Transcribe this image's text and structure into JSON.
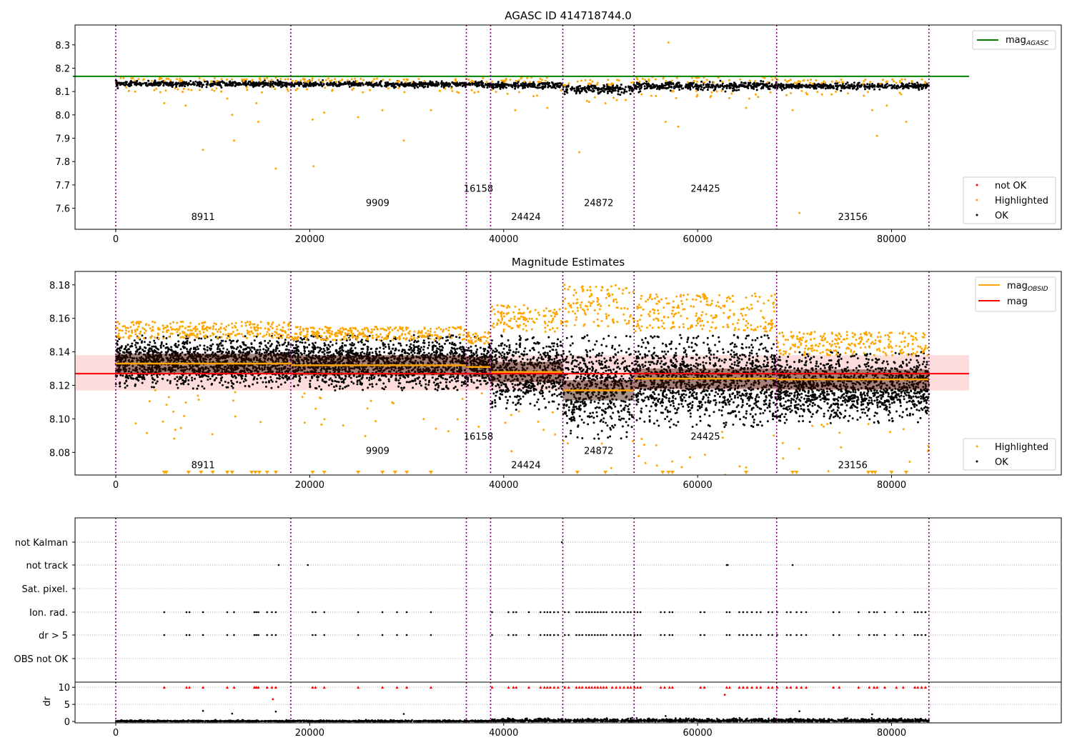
{
  "colors": {
    "ok": "#000000",
    "highlighted": "#ffa500",
    "not_ok": "#ff0000",
    "agasc_line": "#008000",
    "obsid_line": "#ffa500",
    "mag_line": "#ff0000",
    "mag_band": "#ffdcdc",
    "obs_boundary": "#800080",
    "grid": "#b0b0b0"
  },
  "chart_data": [
    {
      "id": "agasc",
      "type": "scatter",
      "title": "AGASC ID 414718744.0",
      "xlim": [
        -4200,
        97500
      ],
      "ylim": [
        7.51,
        8.385
      ],
      "xticks": [
        0,
        20000,
        40000,
        60000,
        80000
      ],
      "xticklabels": [
        "0",
        "20000",
        "40000",
        "60000",
        "80000"
      ],
      "yticks": [
        7.6,
        7.7,
        7.8,
        7.9,
        8.0,
        8.1,
        8.2,
        8.3
      ],
      "yticklabels": [
        "7.6",
        "7.7",
        "7.8",
        "7.9",
        "8.0",
        "8.1",
        "8.2",
        "8.3"
      ],
      "obs_boundaries": [
        0,
        18050,
        36150,
        38650,
        46100,
        53450,
        68150,
        83850
      ],
      "obsid_labels": [
        {
          "text": "8911",
          "x": 9000,
          "y": 7.55
        },
        {
          "text": "9909",
          "x": 27000,
          "y": 7.61
        },
        {
          "text": "16158",
          "x": 37400,
          "y": 7.67
        },
        {
          "text": "24424",
          "x": 42300,
          "y": 7.55
        },
        {
          "text": "24872",
          "x": 49800,
          "y": 7.61
        },
        {
          "text": "24425",
          "x": 60800,
          "y": 7.67
        },
        {
          "text": "23156",
          "x": 76000,
          "y": 7.55
        }
      ],
      "agasc_mag": {
        "value": 8.165,
        "x_range": [
          0,
          88000
        ],
        "label": "mag",
        "label_sub": "AGASC"
      },
      "segments": [
        {
          "x0": 0,
          "x1": 18050,
          "center": 8.133,
          "spread": 0.012
        },
        {
          "x0": 18050,
          "x1": 36150,
          "center": 8.131,
          "spread": 0.012
        },
        {
          "x0": 36150,
          "x1": 38650,
          "center": 8.131,
          "spread": 0.012
        },
        {
          "x0": 38650,
          "x1": 46100,
          "center": 8.126,
          "spread": 0.016
        },
        {
          "x0": 46100,
          "x1": 53450,
          "center": 8.11,
          "spread": 0.02
        },
        {
          "x0": 53450,
          "x1": 68150,
          "center": 8.124,
          "spread": 0.018
        },
        {
          "x0": 68150,
          "x1": 83850,
          "center": 8.122,
          "spread": 0.014
        }
      ],
      "outliers": [
        [
          2000,
          8.1
        ],
        [
          5000,
          8.05
        ],
        [
          7200,
          8.04
        ],
        [
          9000,
          7.85
        ],
        [
          11500,
          8.07
        ],
        [
          12000,
          8.0
        ],
        [
          12200,
          7.89
        ],
        [
          14500,
          8.05
        ],
        [
          14700,
          7.97
        ],
        [
          16500,
          7.77
        ],
        [
          20300,
          7.98
        ],
        [
          20400,
          7.78
        ],
        [
          21500,
          8.01
        ],
        [
          25000,
          7.99
        ],
        [
          27500,
          8.02
        ],
        [
          29700,
          7.89
        ],
        [
          32500,
          8.02
        ],
        [
          41200,
          8.02
        ],
        [
          44500,
          8.03
        ],
        [
          47800,
          7.84
        ],
        [
          50500,
          8.05
        ],
        [
          56700,
          7.97
        ],
        [
          57000,
          8.31
        ],
        [
          58000,
          7.95
        ],
        [
          65000,
          8.03
        ],
        [
          69800,
          8.02
        ],
        [
          70500,
          7.58
        ],
        [
          78000,
          8.02
        ],
        [
          78500,
          7.91
        ],
        [
          79500,
          8.04
        ],
        [
          81500,
          7.97
        ]
      ],
      "legend": {
        "upper": [
          {
            "label": "mag",
            "sub": "AGASC"
          }
        ],
        "lower": [
          {
            "label": "not OK"
          },
          {
            "label": "Highlighted"
          },
          {
            "label": "OK"
          }
        ]
      }
    },
    {
      "id": "estimates",
      "type": "scatter",
      "title": "Magnitude Estimates",
      "xlim": [
        -4200,
        97500
      ],
      "ylim": [
        8.0665,
        8.188
      ],
      "xticks": [
        0,
        20000,
        40000,
        60000,
        80000
      ],
      "xticklabels": [
        "0",
        "20000",
        "40000",
        "60000",
        "80000"
      ],
      "yticks": [
        8.08,
        8.1,
        8.12,
        8.14,
        8.16,
        8.18
      ],
      "yticklabels": [
        "8.08",
        "8.10",
        "8.12",
        "8.14",
        "8.16",
        "8.18"
      ],
      "obs_boundaries": [
        0,
        18050,
        36150,
        38650,
        46100,
        53450,
        68150,
        83850
      ],
      "obsid_labels": [
        {
          "text": "8911",
          "x": 9000,
          "y": 8.0705
        },
        {
          "text": "9909",
          "x": 27000,
          "y": 8.079
        },
        {
          "text": "16158",
          "x": 37400,
          "y": 8.0875
        },
        {
          "text": "24424",
          "x": 42300,
          "y": 8.0705
        },
        {
          "text": "24872",
          "x": 49800,
          "y": 8.079
        },
        {
          "text": "24425",
          "x": 60800,
          "y": 8.0875
        },
        {
          "text": "23156",
          "x": 76000,
          "y": 8.0705
        }
      ],
      "mag": {
        "value": 8.127,
        "band": [
          8.117,
          8.138
        ],
        "x_range": [
          -4200,
          88000
        ]
      },
      "mag_obsid": [
        {
          "x0": 0,
          "x1": 18050,
          "value": 8.133
        },
        {
          "x0": 18050,
          "x1": 36150,
          "value": 8.132
        },
        {
          "x0": 36150,
          "x1": 38650,
          "value": 8.131
        },
        {
          "x0": 38650,
          "x1": 46100,
          "value": 8.128
        },
        {
          "x0": 46100,
          "x1": 53450,
          "value": 8.117
        },
        {
          "x0": 53450,
          "x1": 68150,
          "value": 8.124
        },
        {
          "x0": 68150,
          "x1": 83850,
          "value": 8.1235
        }
      ],
      "segments": [
        {
          "x0": 0,
          "x1": 18050,
          "low": 8.118,
          "high": 8.15,
          "hl_low": 8.148,
          "hl_high": 8.158
        },
        {
          "x0": 18050,
          "x1": 36150,
          "low": 8.117,
          "high": 8.15,
          "hl_low": 8.147,
          "hl_high": 8.155
        },
        {
          "x0": 36150,
          "x1": 38650,
          "low": 8.117,
          "high": 8.149,
          "hl_low": 8.145,
          "hl_high": 8.152
        },
        {
          "x0": 38650,
          "x1": 46100,
          "low": 8.105,
          "high": 8.15,
          "hl_low": 8.152,
          "hl_high": 8.168
        },
        {
          "x0": 46100,
          "x1": 53450,
          "low": 8.088,
          "high": 8.15,
          "hl_low": 8.155,
          "hl_high": 8.18
        },
        {
          "x0": 53450,
          "x1": 68150,
          "low": 8.095,
          "high": 8.15,
          "hl_low": 8.152,
          "hl_high": 8.175
        },
        {
          "x0": 68150,
          "x1": 83850,
          "low": 8.097,
          "high": 8.14,
          "hl_low": 8.138,
          "hl_high": 8.152
        }
      ],
      "legend": [
        {
          "label": "mag",
          "sub": "OBSID"
        },
        {
          "label": "mag"
        }
      ],
      "legend_lower": [
        {
          "label": "Highlighted"
        },
        {
          "label": "OK"
        }
      ]
    },
    {
      "id": "flags",
      "type": "scatter",
      "xlim": [
        -4200,
        97500
      ],
      "categories": [
        "not Kalman",
        "not track",
        "Sat. pixel.",
        "Ion. rad.",
        "dr > 5",
        "OBS not OK"
      ],
      "obs_boundaries": [
        0,
        18050,
        36150,
        38650,
        46100,
        53450,
        68150,
        83850
      ],
      "flag_points": {
        "not Kalman": [
          46000
        ],
        "not track": [
          16800,
          19800,
          63000,
          63100,
          69800
        ],
        "Ion. rad.": [
          5000,
          7300,
          7600,
          9000,
          11500,
          12200,
          14300,
          14500,
          14700,
          15600,
          16100,
          16500,
          20300,
          20600,
          21500,
          25000,
          27500,
          29000,
          30000,
          32500,
          38800,
          40500,
          41000,
          41300,
          42600,
          43800,
          44200,
          44500,
          44800,
          45200,
          45600,
          46300,
          46700,
          47500,
          47800,
          48100,
          48500,
          48800,
          49100,
          49400,
          49700,
          50000,
          50300,
          50600,
          51200,
          51600,
          52000,
          52400,
          52800,
          53100,
          53500,
          53800,
          54100,
          56200,
          56600,
          57100,
          57400,
          60300,
          60700,
          63000,
          63300,
          64300,
          64700,
          65100,
          65600,
          66100,
          66500,
          67300,
          67700,
          68200,
          69200,
          69600,
          70200,
          70700,
          71200,
          74000,
          74600,
          76600,
          77700,
          78200,
          78500,
          79300,
          80500,
          81200,
          82400,
          82700,
          83100,
          83500
        ],
        "dr > 5": [
          5000,
          7300,
          7600,
          9000,
          11500,
          12200,
          14300,
          14500,
          14700,
          15600,
          16100,
          16500,
          20300,
          20600,
          21500,
          25000,
          27500,
          29000,
          30000,
          32500,
          38800,
          40500,
          41000,
          41300,
          42600,
          43800,
          44200,
          44500,
          44800,
          45200,
          45600,
          46300,
          46700,
          47500,
          47800,
          48100,
          48500,
          48800,
          49100,
          49400,
          49700,
          50000,
          50300,
          50600,
          51200,
          51600,
          52000,
          52400,
          52800,
          53100,
          53500,
          53800,
          54100,
          56200,
          56600,
          57100,
          57400,
          60300,
          60700,
          63000,
          63300,
          64300,
          64700,
          65100,
          65600,
          66100,
          66500,
          67300,
          67700,
          68200,
          69200,
          69600,
          70200,
          70700,
          71200,
          74000,
          74600,
          76600,
          77700,
          78200,
          78500,
          79300,
          80500,
          81200,
          82400,
          82700,
          83100,
          83500
        ]
      }
    },
    {
      "id": "dr",
      "type": "scatter",
      "ylabel": "dr",
      "xlim": [
        -4200,
        97500
      ],
      "ylim": [
        -0.4,
        11.5
      ],
      "xticks": [
        0,
        20000,
        40000,
        60000,
        80000
      ],
      "xticklabels": [
        "0",
        "20000",
        "40000",
        "60000",
        "80000"
      ],
      "yticks": [
        0,
        5,
        10
      ],
      "yticklabels": [
        "0",
        "5",
        "10"
      ],
      "obs_boundaries": [
        0,
        18050,
        36150,
        38650,
        46100,
        53450,
        68150,
        83850
      ],
      "outliers": [
        [
          9000,
          3.1
        ],
        [
          12000,
          2.3
        ],
        [
          16200,
          6.5
        ],
        [
          16500,
          2.9
        ],
        [
          29700,
          2.2
        ],
        [
          56700,
          1.6
        ],
        [
          62800,
          7.8
        ],
        [
          70500,
          3.0
        ],
        [
          78000,
          2.1
        ]
      ]
    }
  ]
}
